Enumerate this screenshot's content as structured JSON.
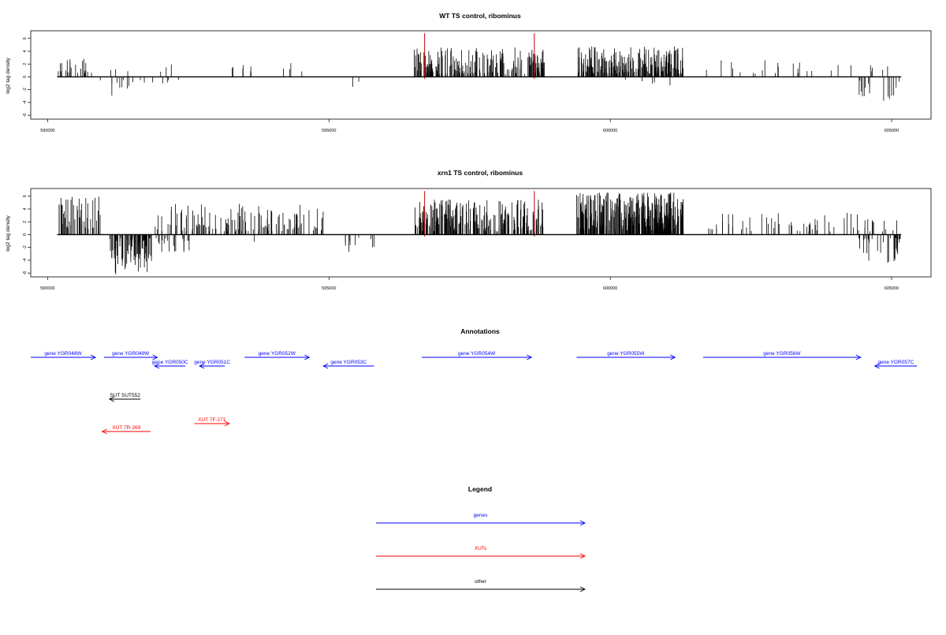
{
  "colors": {
    "gene": "#0000ff",
    "xut": "#ff0000",
    "other": "#000000",
    "highlight": "#cc0000",
    "bar": "#000000"
  },
  "chart_data": [
    {
      "type": "bar",
      "title": "WT TS control, ribominus",
      "ylabel": "log2 tag density",
      "xlim": [
        589700,
        605700
      ],
      "ylim": [
        -6.6,
        7.2
      ],
      "xticks": [
        590000,
        595000,
        600000,
        605000
      ],
      "yticks": [
        -6,
        -4,
        -2,
        0,
        2,
        4,
        6
      ],
      "xticklabels": [
        "590000",
        "595000",
        "600000",
        "605000"
      ],
      "yticklabels": [
        "-6",
        "-4",
        "-2",
        "0",
        "2",
        "4",
        "6"
      ],
      "baseline": {
        "x": [
          590170,
          605170
        ],
        "y": 0
      },
      "highlights": [
        {
          "x": 596700,
          "y": 6.8
        },
        {
          "x": 598650,
          "y": 6.8
        }
      ],
      "segments": [
        {
          "x": [
            590170,
            590800
          ],
          "density": 0.5,
          "y": [
            0.6,
            3.0
          ],
          "seed": 11
        },
        {
          "x": [
            590900,
            591900
          ],
          "density": 0.18,
          "y": [
            -3.1,
            -0.4
          ],
          "seed": 12
        },
        {
          "x": [
            591100,
            591550
          ],
          "density": 0.08,
          "y": [
            0.8,
            2.0
          ],
          "seed": 13
        },
        {
          "x": [
            591900,
            592500
          ],
          "density": 0.1,
          "y": [
            -1.8,
            -0.4
          ],
          "seed": 14
        },
        {
          "x": [
            591950,
            592600
          ],
          "density": 0.07,
          "y": [
            0.6,
            2.3
          ],
          "seed": 15
        },
        {
          "x": [
            593200,
            594900
          ],
          "density": 0.09,
          "y": [
            0.6,
            2.2
          ],
          "seed": 16
        },
        {
          "x": [
            595300,
            595800
          ],
          "density": 0.05,
          "y": [
            -1.9,
            -0.5
          ],
          "seed": 17
        },
        {
          "x": [
            596500,
            598850
          ],
          "density": 1.2,
          "y": [
            0.4,
            4.6
          ],
          "seed": 18
        },
        {
          "x": [
            599400,
            601300
          ],
          "density": 1.6,
          "y": [
            0.5,
            4.8
          ],
          "seed": 19
        },
        {
          "x": [
            600000,
            601100
          ],
          "density": 0.06,
          "y": [
            -1.4,
            -0.4
          ],
          "seed": 20
        },
        {
          "x": [
            601600,
            604500
          ],
          "density": 0.1,
          "y": [
            0.5,
            3.0
          ],
          "seed": 21
        },
        {
          "x": [
            604400,
            605170
          ],
          "density": 0.3,
          "y": [
            -3.8,
            -0.5
          ],
          "seed": 22
        },
        {
          "x": [
            604500,
            605100
          ],
          "density": 0.12,
          "y": [
            0.5,
            2.0
          ],
          "seed": 23
        }
      ]
    },
    {
      "type": "bar",
      "title": "xrn1 TS control, ribominus",
      "ylabel": "log2 tag density",
      "xlim": [
        589700,
        605700
      ],
      "ylim": [
        -6.6,
        7.2
      ],
      "xticks": [
        590000,
        595000,
        600000,
        605000
      ],
      "yticks": [
        -6,
        -4,
        -2,
        0,
        2,
        4,
        6
      ],
      "xticklabels": [
        "590000",
        "595000",
        "600000",
        "605000"
      ],
      "yticklabels": [
        "-6",
        "-4",
        "-2",
        "0",
        "2",
        "4",
        "6"
      ],
      "baseline": {
        "x": [
          590170,
          605170
        ],
        "y": 0
      },
      "highlights": [
        {
          "x": 596700,
          "y": 6.8
        },
        {
          "x": 598650,
          "y": 6.8
        }
      ],
      "segments": [
        {
          "x": [
            590170,
            590950
          ],
          "density": 0.8,
          "y": [
            0.8,
            6.0
          ],
          "seed": 31
        },
        {
          "x": [
            591100,
            591850
          ],
          "density": 1.6,
          "y": [
            -6.3,
            -0.5
          ],
          "seed": 32
        },
        {
          "x": [
            591850,
            592600
          ],
          "density": 0.35,
          "y": [
            -3.0,
            -0.5
          ],
          "seed": 33
        },
        {
          "x": [
            591900,
            594900
          ],
          "density": 0.6,
          "y": [
            0.5,
            4.8
          ],
          "seed": 34
        },
        {
          "x": [
            593500,
            594200
          ],
          "density": 0.03,
          "y": [
            -2.4,
            -0.5
          ],
          "seed": 35
        },
        {
          "x": [
            595200,
            595900
          ],
          "density": 0.2,
          "y": [
            -3.2,
            -0.5
          ],
          "seed": 36
        },
        {
          "x": [
            596500,
            598850
          ],
          "density": 1.3,
          "y": [
            0.5,
            5.5
          ],
          "seed": 37
        },
        {
          "x": [
            599400,
            601300
          ],
          "density": 2.5,
          "y": [
            0.6,
            6.6
          ],
          "seed": 38
        },
        {
          "x": [
            601700,
            604800
          ],
          "density": 0.25,
          "y": [
            0.5,
            3.4
          ],
          "seed": 39
        },
        {
          "x": [
            604400,
            605170
          ],
          "density": 0.6,
          "y": [
            -4.6,
            -0.5
          ],
          "seed": 40
        },
        {
          "x": [
            604400,
            605100
          ],
          "density": 0.2,
          "y": [
            0.5,
            2.4
          ],
          "seed": 41
        }
      ]
    }
  ],
  "annotations": {
    "title": "Annotations",
    "features": [
      {
        "label": "gene YGR048W",
        "kind": "gene",
        "dir": "right",
        "start": 589700,
        "end": 590850,
        "row": 0
      },
      {
        "label": "gene YGR049W",
        "kind": "gene",
        "dir": "right",
        "start": 591000,
        "end": 591950,
        "row": 0
      },
      {
        "label": "gene YGR050C",
        "kind": "gene",
        "dir": "left",
        "start": 591900,
        "end": 592450,
        "row": 1
      },
      {
        "label": "gene YGR051C",
        "kind": "gene",
        "dir": "left",
        "start": 592700,
        "end": 593150,
        "row": 1
      },
      {
        "label": "gene YGR052W",
        "kind": "gene",
        "dir": "right",
        "start": 593500,
        "end": 594650,
        "row": 0
      },
      {
        "label": "gene YGR053C",
        "kind": "gene",
        "dir": "left",
        "start": 594900,
        "end": 595800,
        "row": 1
      },
      {
        "label": "gene YGR054W",
        "kind": "gene",
        "dir": "right",
        "start": 596650,
        "end": 598600,
        "row": 0
      },
      {
        "label": "gene YGR055W",
        "kind": "gene",
        "dir": "right",
        "start": 599400,
        "end": 601150,
        "row": 0
      },
      {
        "label": "gene YGR056W",
        "kind": "gene",
        "dir": "right",
        "start": 601650,
        "end": 604450,
        "row": 0
      },
      {
        "label": "gene YGR057C",
        "kind": "gene",
        "dir": "left",
        "start": 604700,
        "end": 605450,
        "row": 1
      },
      {
        "label": "SUT SUT552",
        "kind": "other",
        "dir": "left",
        "start": 591100,
        "end": 591650,
        "row": 2
      },
      {
        "label": "XUT 7F-271",
        "kind": "xut",
        "dir": "right",
        "start": 592610,
        "end": 593230,
        "row": 3
      },
      {
        "label": "XUT 7R-269",
        "kind": "xut",
        "dir": "left",
        "start": 590970,
        "end": 591830,
        "row": 4
      }
    ]
  },
  "legend": {
    "title": "Legend",
    "items": [
      {
        "label": "genes",
        "kind": "gene"
      },
      {
        "label": "XUTs",
        "kind": "xut"
      },
      {
        "label": "other",
        "kind": "other"
      }
    ]
  }
}
